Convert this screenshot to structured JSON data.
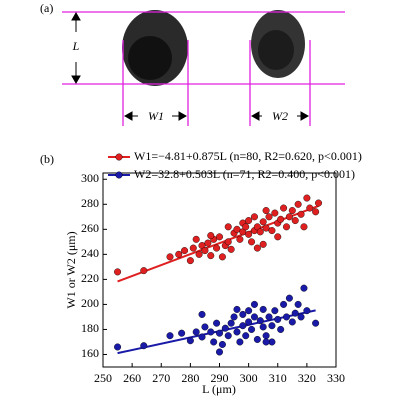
{
  "panel_a": {
    "label": "(a)",
    "length_label": "L",
    "width_labels": [
      "W1",
      "W2"
    ]
  },
  "chart_data": {
    "type": "scatter",
    "panel_label": "(b)",
    "x_label": "L (μm)",
    "y_label": "W1 or W2 (μm)",
    "xlim": [
      250,
      330
    ],
    "xticks": [
      250,
      260,
      270,
      280,
      290,
      300,
      310,
      320,
      330
    ],
    "ylim": [
      150,
      305
    ],
    "yticks": [
      160,
      180,
      200,
      220,
      240,
      260,
      280,
      300
    ],
    "series": [
      {
        "name": "W1=−4.81+0.875L (n=80, R2=0.620, p<0.001)",
        "color": "#e02020",
        "fit": {
          "intercept": -4.81,
          "slope": 0.875
        },
        "x": [
          255,
          264,
          273,
          276,
          278,
          280,
          281,
          283,
          284,
          285,
          286,
          287,
          288,
          289,
          290,
          291,
          292,
          293,
          293,
          294,
          295,
          296,
          297,
          298,
          298,
          299,
          300,
          300,
          301,
          302,
          302,
          303,
          304,
          305,
          305,
          306,
          306,
          307,
          308,
          309,
          310,
          310,
          311,
          312,
          313,
          314,
          315,
          316,
          317,
          318,
          319,
          320,
          321,
          323,
          324,
          282,
          287,
          303
        ],
        "values": [
          226,
          227,
          238,
          240,
          243,
          235,
          245,
          240,
          247,
          243,
          249,
          239,
          252,
          245,
          254,
          238,
          247,
          262,
          250,
          244,
          257,
          260,
          252,
          265,
          258,
          262,
          267,
          256,
          250,
          259,
          270,
          262,
          258,
          266,
          248,
          275,
          261,
          270,
          259,
          273,
          265,
          254,
          268,
          277,
          262,
          270,
          275,
          267,
          280,
          272,
          262,
          285,
          277,
          274,
          281,
          252,
          255,
          245
        ]
      },
      {
        "name": "W2=32.8+0.503L (n=71, R2=0.400, p<0.001)",
        "color": "#1a1aa8",
        "fit": {
          "intercept": 32.8,
          "slope": 0.503
        },
        "x": [
          255,
          264,
          273,
          277,
          280,
          282,
          284,
          285,
          287,
          288,
          289,
          290,
          290,
          291,
          292,
          293,
          294,
          295,
          296,
          297,
          298,
          298,
          299,
          300,
          300,
          301,
          302,
          302,
          303,
          304,
          305,
          305,
          306,
          307,
          308,
          308,
          309,
          310,
          311,
          312,
          313,
          314,
          315,
          316,
          317,
          318,
          319,
          320,
          323,
          284,
          296,
          306
        ],
        "values": [
          166,
          167,
          175,
          177,
          171,
          178,
          174,
          182,
          178,
          170,
          185,
          162,
          177,
          168,
          181,
          175,
          185,
          190,
          178,
          170,
          192,
          183,
          175,
          195,
          186,
          180,
          200,
          190,
          172,
          187,
          182,
          196,
          175,
          190,
          183,
          170,
          195,
          188,
          180,
          200,
          190,
          205,
          186,
          193,
          200,
          190,
          213,
          195,
          185,
          192,
          196,
          170
        ]
      }
    ]
  }
}
